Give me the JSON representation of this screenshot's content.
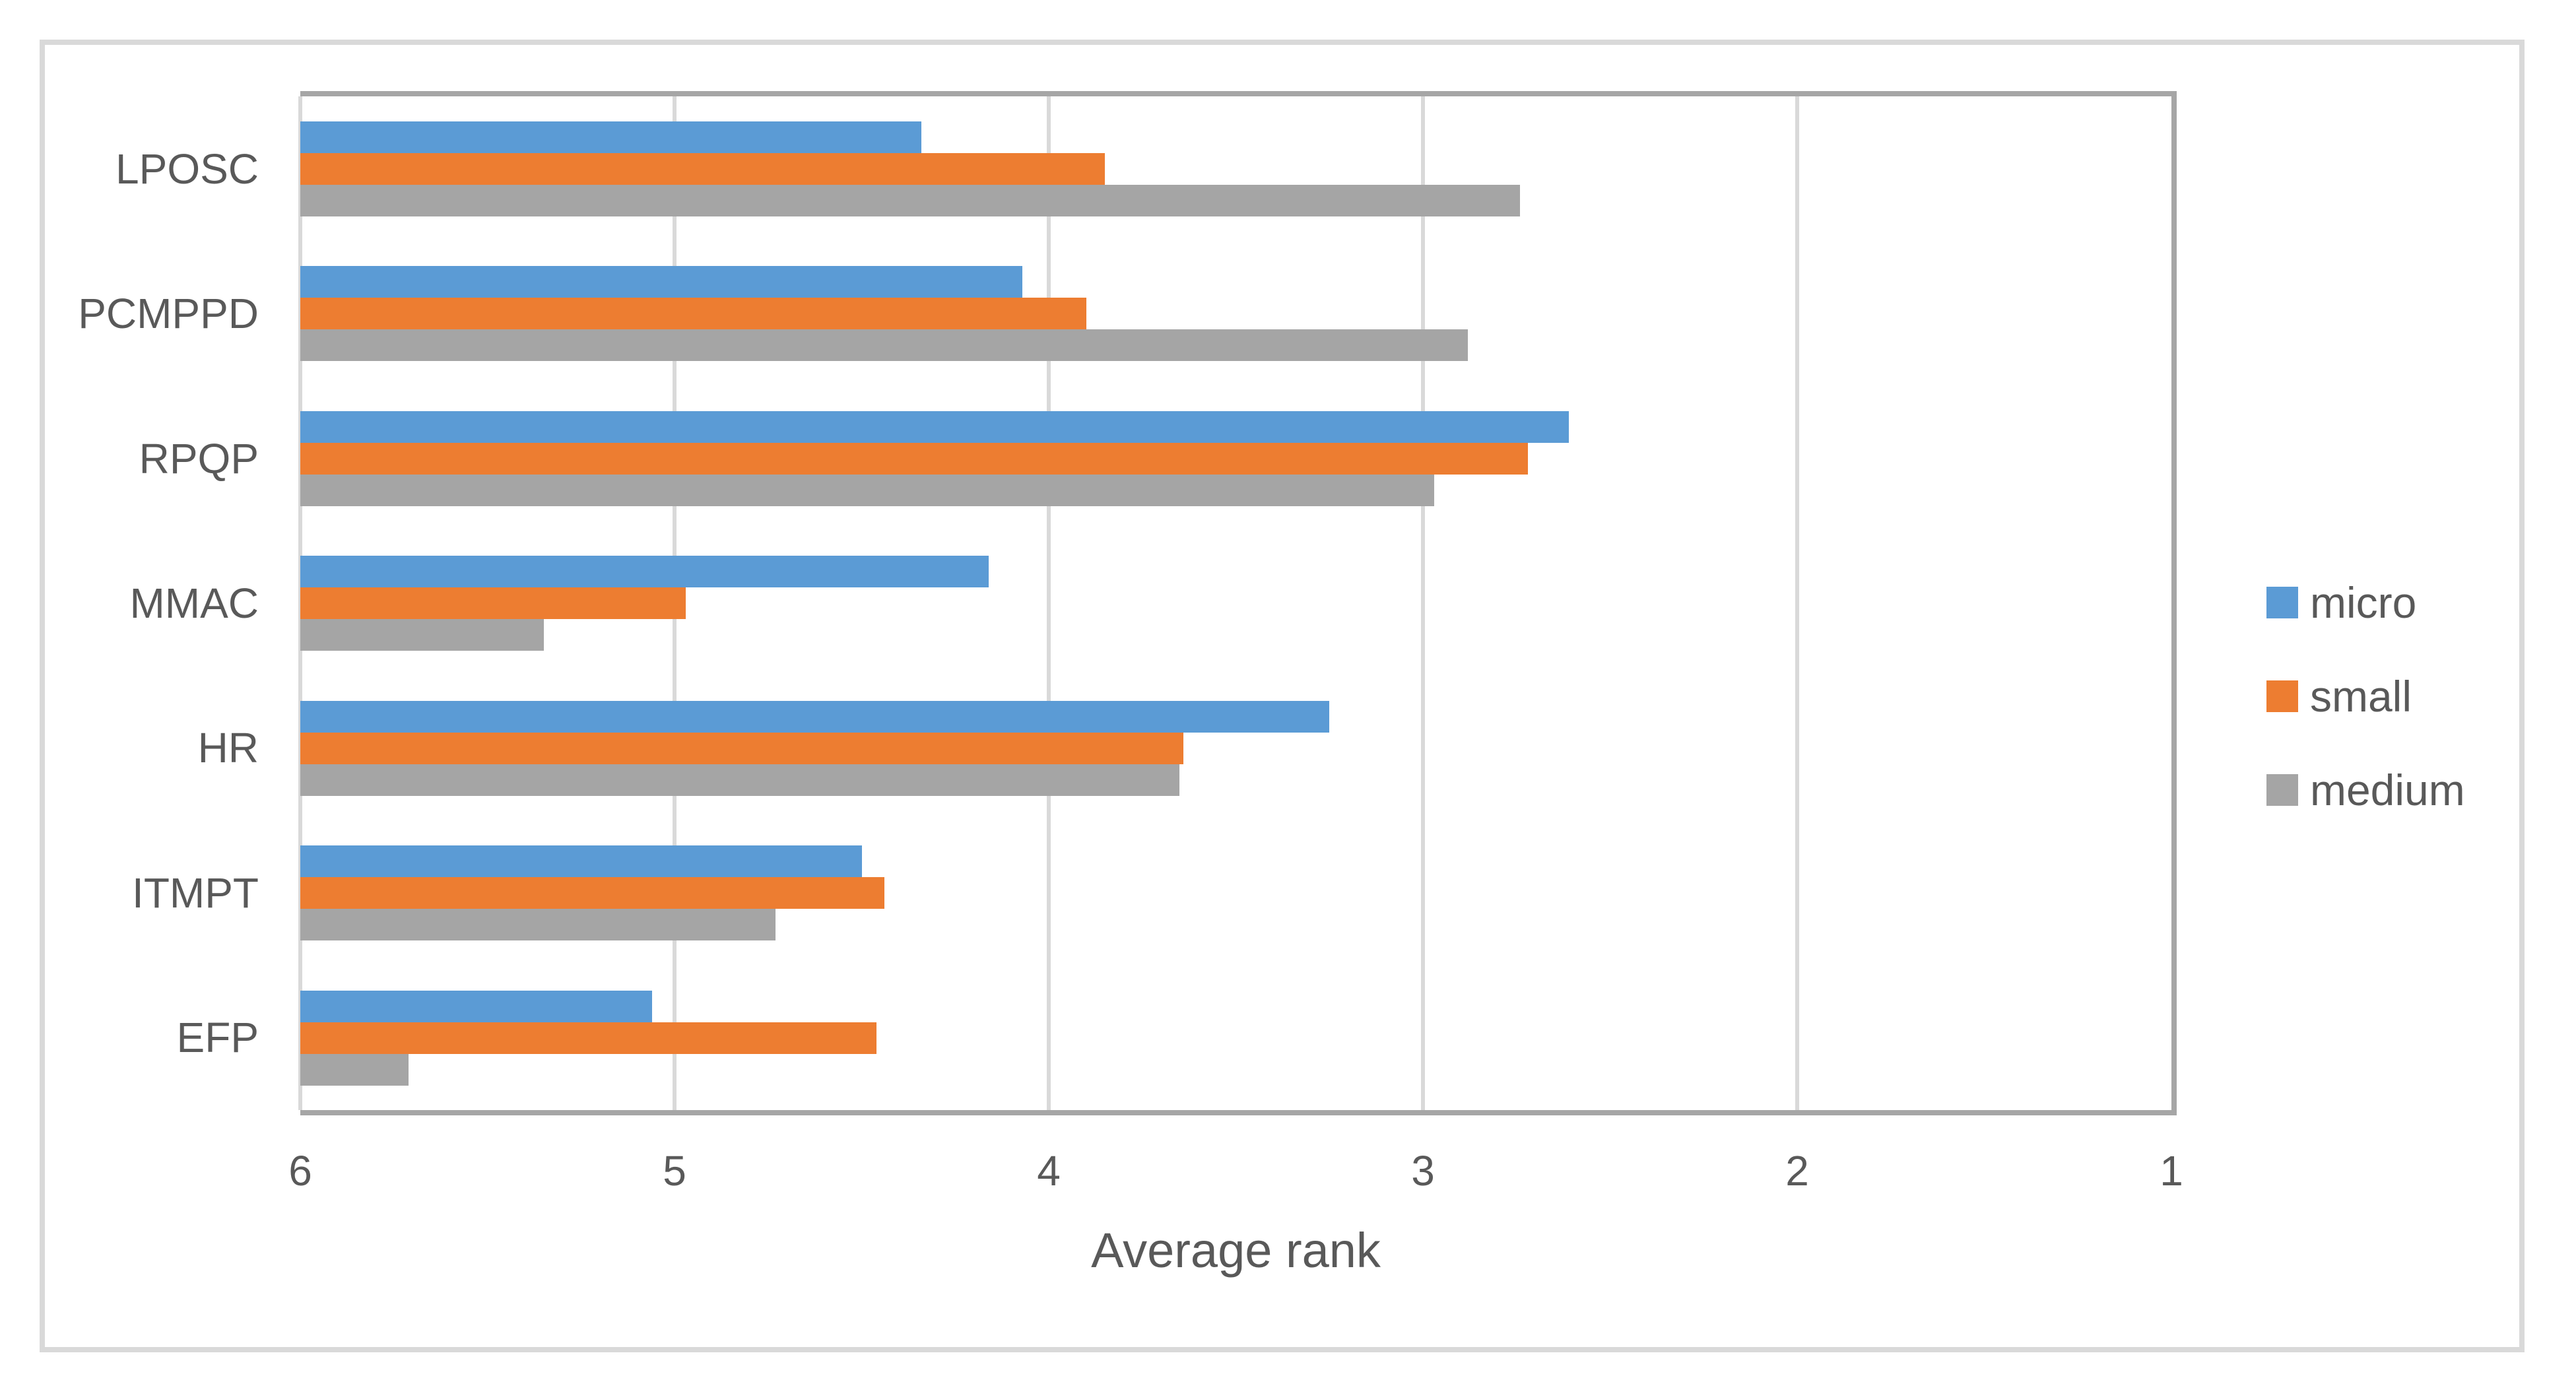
{
  "figure": {
    "background_color": "#FFFFFF",
    "outer_border_color": "#D9D9D9",
    "plot_border_color": "#A6A6A6",
    "gridline_color": "#D9D9D9",
    "text_color": "#595959"
  },
  "chart_data": {
    "type": "bar",
    "orientation": "horizontal",
    "title": "",
    "xlabel": "Average rank",
    "ylabel": "",
    "categories": [
      "LPOSC",
      "PCMPPD",
      "RPQP",
      "MMAC",
      "HR",
      "ITMPT",
      "EFP"
    ],
    "series": [
      {
        "name": "micro",
        "color": "#5B9BD5",
        "values": [
          4.34,
          4.07,
          2.61,
          4.16,
          3.25,
          4.5,
          5.06
        ]
      },
      {
        "name": "small",
        "color": "#ED7D31",
        "values": [
          3.85,
          3.9,
          2.72,
          4.97,
          3.64,
          4.44,
          4.46
        ]
      },
      {
        "name": "medium",
        "color": "#A5A5A5",
        "values": [
          2.74,
          2.88,
          2.97,
          5.35,
          3.65,
          4.73,
          5.71
        ]
      }
    ],
    "x_axis": {
      "min": 1,
      "max": 6,
      "reversed": true,
      "ticks": [
        6,
        5,
        4,
        3,
        2,
        1
      ]
    },
    "grid": true,
    "legend_position": "right"
  }
}
